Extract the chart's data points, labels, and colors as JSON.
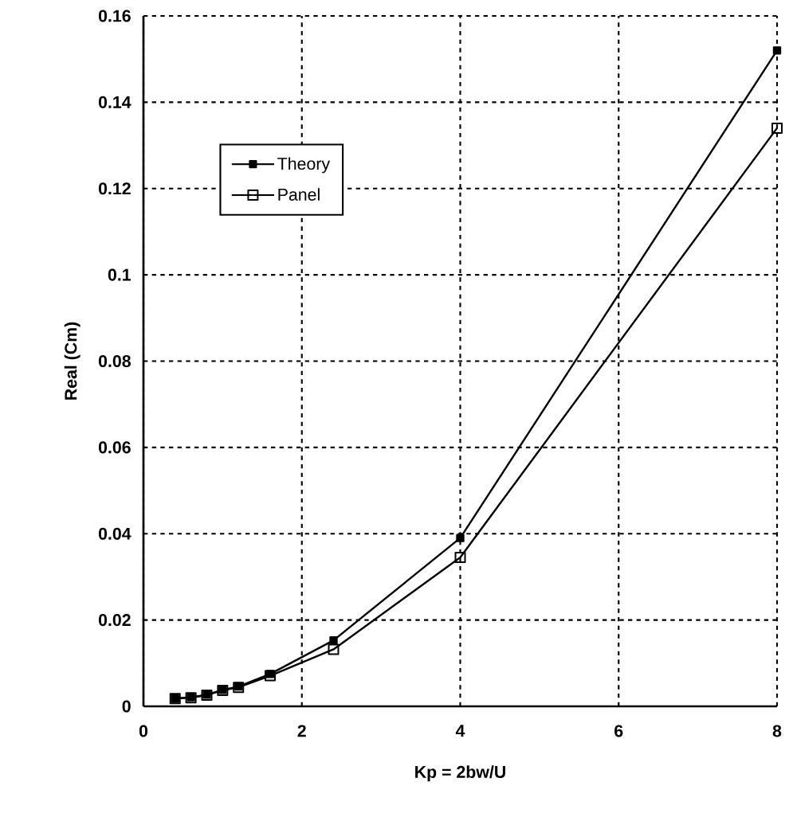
{
  "chart_data": {
    "type": "line",
    "xlabel": "Kp  =  2bw/U",
    "ylabel": "Real   (Cm)",
    "x": [
      0.4,
      0.6,
      0.8,
      1.0,
      1.2,
      1.6,
      2.4,
      4,
      8
    ],
    "series": [
      {
        "name": "Theory",
        "color": "#000000",
        "values": [
          0.0018,
          0.0021,
          0.0027,
          0.0038,
          0.0046,
          0.0075,
          0.0153,
          0.039,
          0.152
        ]
      },
      {
        "name": "Panel",
        "color": "#000000",
        "values": [
          0.0018,
          0.002,
          0.0026,
          0.0037,
          0.0044,
          0.0071,
          0.0132,
          0.0345,
          0.134
        ]
      }
    ],
    "xlim": [
      0,
      8
    ],
    "ylim": [
      0,
      0.16
    ],
    "xticks": [
      0,
      2,
      4,
      6,
      8
    ],
    "yticks": [
      0,
      0.02,
      0.04,
      0.06,
      0.08,
      0.1,
      0.12,
      0.14,
      0.16
    ],
    "grid": true,
    "legend": "top left",
    "marker": "square",
    "line_style": "solid"
  }
}
